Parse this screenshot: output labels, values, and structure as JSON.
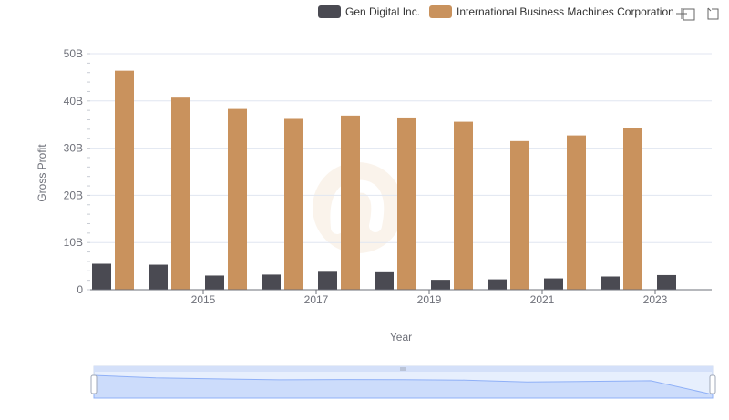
{
  "chart_data": {
    "type": "bar",
    "title": "",
    "xlabel": "Year",
    "ylabel": "Gross Profit",
    "ylim": [
      0,
      50000000000
    ],
    "yticks": [
      "0",
      "10B",
      "20B",
      "30B",
      "40B",
      "50B"
    ],
    "x": [
      2014,
      2015,
      2016,
      2017,
      2018,
      2019,
      2020,
      2021,
      2022,
      2023,
      2024
    ],
    "xtick_labels": [
      "2015",
      "2017",
      "2019",
      "2021",
      "2023"
    ],
    "grid": true,
    "legend_position": "top-right",
    "series": [
      {
        "name": "Gen Digital Inc.",
        "color": "#4a4a52",
        "values": [
          5500000000,
          5300000000,
          3000000000,
          3200000000,
          3800000000,
          3700000000,
          2100000000,
          2200000000,
          2400000000,
          2800000000,
          3100000000
        ]
      },
      {
        "name": "International Business Machines Corporation",
        "color": "#c9925d",
        "values": [
          46400000000,
          40700000000,
          38300000000,
          36200000000,
          36900000000,
          36500000000,
          35600000000,
          31500000000,
          32700000000,
          34300000000,
          null
        ]
      }
    ]
  },
  "toolbox": {
    "zoom_icon": "zoom-icon",
    "restore_icon": "restore-icon"
  },
  "datazoom": {
    "start_percent": 0,
    "end_percent": 100
  },
  "colors": {
    "grid": "#e0e6f1",
    "axis": "#6e7079",
    "slider_fill": "#d4e0f9",
    "slider_line": "#8fb0f7"
  }
}
